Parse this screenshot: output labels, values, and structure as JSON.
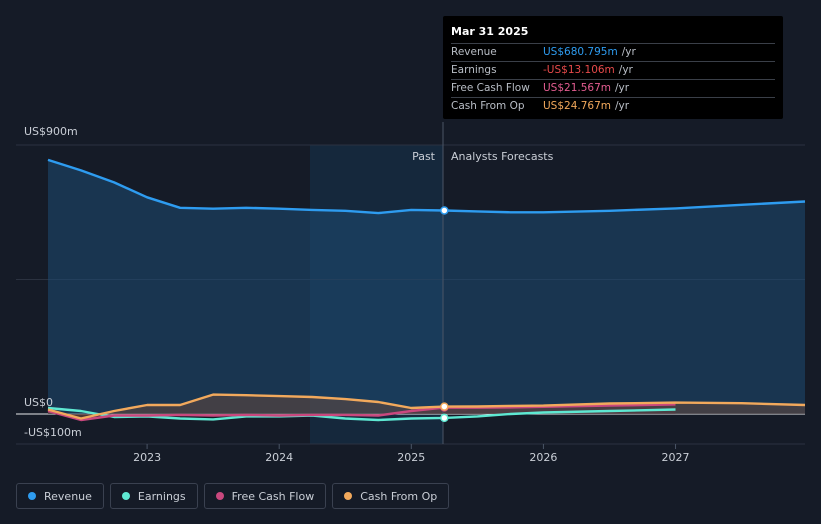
{
  "tooltip": {
    "date": "Mar 31 2025",
    "rows": [
      {
        "label": "Revenue",
        "value": "US$680.795m",
        "unit": "/yr",
        "color": "#2e9cf0"
      },
      {
        "label": "Earnings",
        "value": "-US$13.106m",
        "unit": "/yr",
        "color": "#e84a4a"
      },
      {
        "label": "Free Cash Flow",
        "value": "US$21.567m",
        "unit": "/yr",
        "color": "#e45d91"
      },
      {
        "label": "Cash From Op",
        "value": "US$24.767m",
        "unit": "/yr",
        "color": "#f2a95c"
      }
    ]
  },
  "labels": {
    "past": "Past",
    "forecast": "Analysts Forecasts"
  },
  "legend": [
    {
      "label": "Revenue",
      "color": "#2e9cf0"
    },
    {
      "label": "Earnings",
      "color": "#5ee8d2"
    },
    {
      "label": "Free Cash Flow",
      "color": "#c9487e"
    },
    {
      "label": "Cash From Op",
      "color": "#f2a95c"
    }
  ],
  "chart_data": {
    "type": "line",
    "y_tick_labels": [
      "US$900m",
      "US$0",
      "-US$100m"
    ],
    "x_tick_labels": [
      "2023",
      "2024",
      "2025",
      "2026",
      "2027"
    ],
    "ylim": [
      -100,
      900
    ],
    "xlim": [
      2022.25,
      2027.98
    ],
    "divider_x": 2025.25,
    "series": [
      {
        "name": "Revenue",
        "color": "#2e9cf0",
        "x": [
          2022.25,
          2022.5,
          2022.75,
          2023.0,
          2023.25,
          2023.5,
          2023.75,
          2024.0,
          2024.25,
          2024.5,
          2024.75,
          2025.0,
          2025.25,
          2025.5,
          2025.75,
          2026.0,
          2026.5,
          2027.0,
          2027.5,
          2027.98
        ],
        "y": [
          850,
          815,
          775,
          725,
          690,
          687,
          690,
          687,
          683,
          680,
          672,
          683,
          681,
          678,
          675,
          675,
          680,
          688,
          700,
          711
        ]
      },
      {
        "name": "Earnings",
        "color": "#5ee8d2",
        "x": [
          2022.25,
          2022.5,
          2022.75,
          2023.0,
          2023.25,
          2023.5,
          2023.75,
          2024.0,
          2024.25,
          2024.5,
          2024.75,
          2025.0,
          2025.25,
          2025.5,
          2025.75,
          2026.0,
          2026.5,
          2027.0
        ],
        "y": [
          20,
          10,
          -10,
          -8,
          -15,
          -18,
          -8,
          -8,
          -5,
          -15,
          -20,
          -15,
          -13,
          -8,
          0,
          5,
          10,
          15
        ]
      },
      {
        "name": "Free Cash Flow",
        "color": "#c9487e",
        "x": [
          2022.25,
          2022.5,
          2022.75,
          2023.0,
          2023.25,
          2023.5,
          2023.75,
          2024.0,
          2024.25,
          2024.5,
          2024.75,
          2025.0,
          2025.25,
          2025.5,
          2025.75,
          2026.0,
          2026.5,
          2027.0
        ],
        "y": [
          10,
          -20,
          -5,
          -5,
          -3,
          -5,
          -3,
          -5,
          -3,
          -3,
          -5,
          10,
          21.6,
          21,
          22,
          24,
          28,
          32
        ]
      },
      {
        "name": "Cash From Op",
        "color": "#f2a95c",
        "x": [
          2022.25,
          2022.5,
          2022.75,
          2023.0,
          2023.25,
          2023.5,
          2023.75,
          2024.0,
          2024.25,
          2024.5,
          2024.75,
          2025.0,
          2025.25,
          2025.5,
          2025.75,
          2026.0,
          2026.5,
          2027.0,
          2027.5,
          2027.98
        ],
        "y": [
          15,
          -15,
          10,
          30,
          30,
          65,
          63,
          60,
          57,
          50,
          40,
          20,
          24.8,
          25,
          27,
          28,
          35,
          38,
          36,
          30
        ]
      }
    ],
    "tooltip_x": 2025.25
  }
}
